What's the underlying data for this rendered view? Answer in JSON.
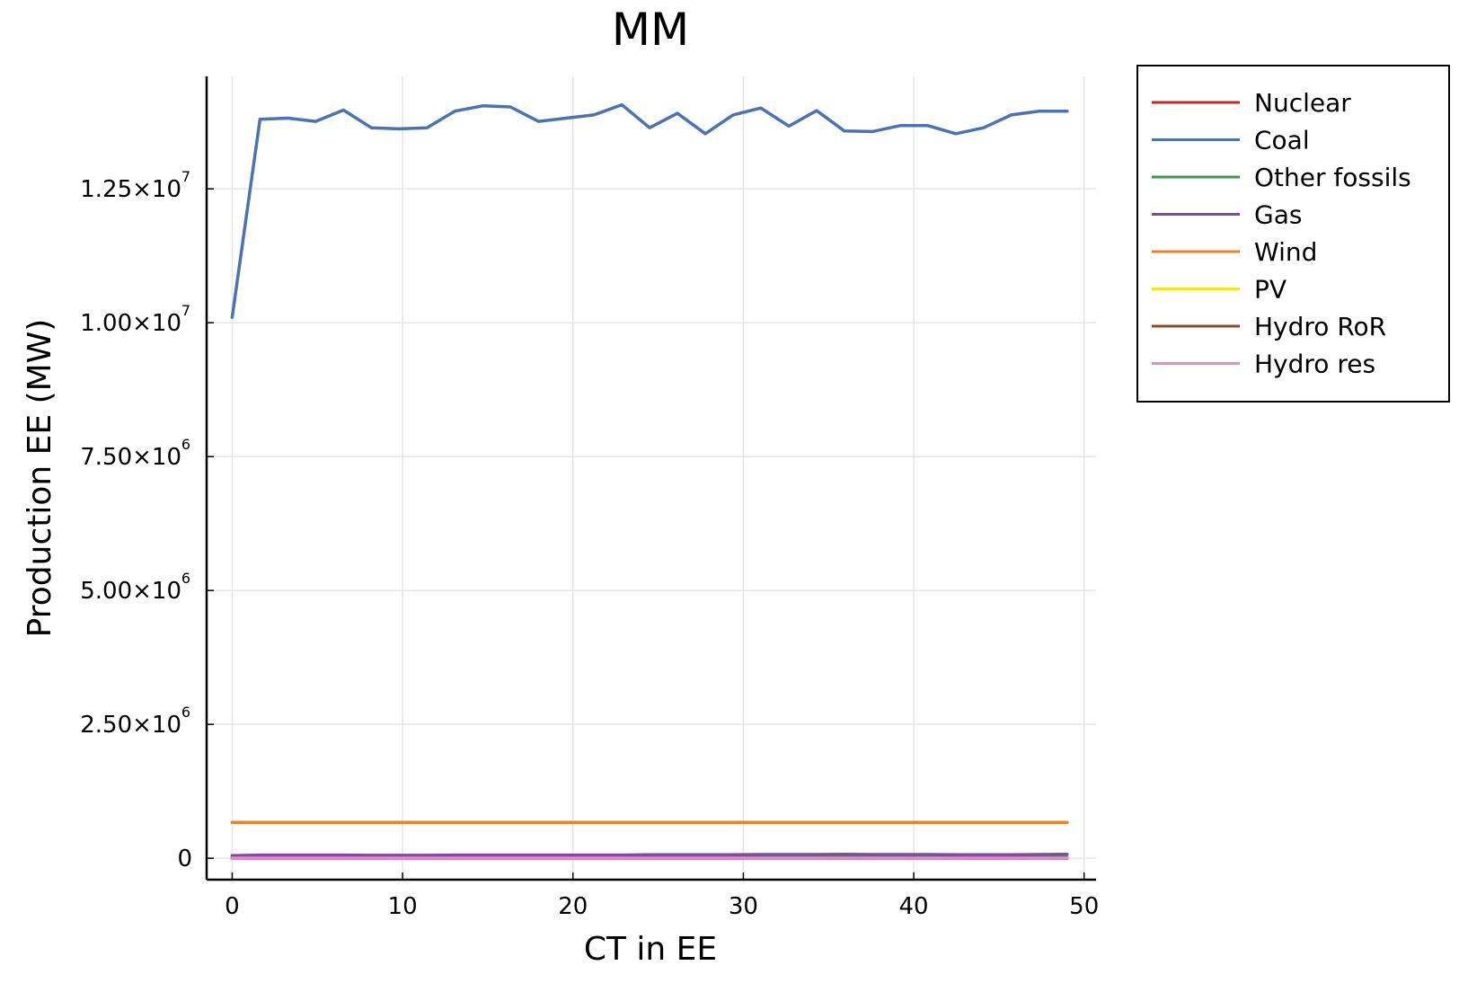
{
  "chart_data": {
    "type": "line",
    "title": "MM",
    "xlabel": "CT in EE",
    "ylabel": "Production EE (MW)",
    "xlim": [
      -1.5,
      50.7
    ],
    "ylim": [
      -400000,
      14600000
    ],
    "grid": true,
    "legend_position": "outside top-right",
    "x_ticks": [
      0,
      10,
      20,
      30,
      40,
      50
    ],
    "x_tick_labels": [
      "0",
      "10",
      "20",
      "30",
      "40",
      "50"
    ],
    "y_ticks": [
      {
        "value": 0,
        "mantissa": "0",
        "exponent": ""
      },
      {
        "value": 2500000,
        "mantissa": "2.50×10",
        "exponent": "6"
      },
      {
        "value": 5000000,
        "mantissa": "5.00×10",
        "exponent": "6"
      },
      {
        "value": 7500000,
        "mantissa": "7.50×10",
        "exponent": "6"
      },
      {
        "value": 10000000,
        "mantissa": "1.00×10",
        "exponent": "7"
      },
      {
        "value": 12500000,
        "mantissa": "1.25×10",
        "exponent": "7"
      }
    ],
    "x": [
      0,
      1.63,
      3.27,
      4.9,
      6.53,
      8.17,
      9.8,
      11.43,
      13.07,
      14.7,
      16.33,
      17.97,
      19.6,
      21.23,
      22.87,
      24.5,
      26.13,
      27.77,
      29.4,
      31.03,
      32.67,
      34.3,
      35.93,
      37.57,
      39.2,
      40.83,
      42.47,
      44.1,
      45.73,
      47.37,
      49
    ],
    "series": [
      {
        "name": "Nuclear",
        "color": "#c0282a",
        "values": [
          0,
          0,
          0,
          0,
          0,
          0,
          0,
          0,
          0,
          0,
          0,
          0,
          0,
          0,
          0,
          0,
          0,
          0,
          0,
          0,
          0,
          0,
          0,
          0,
          0,
          0,
          0,
          0,
          0,
          0,
          0
        ]
      },
      {
        "name": "Coal",
        "color": "#4a72b5",
        "values": [
          10100000,
          13800000,
          13820000,
          13760000,
          13970000,
          13640000,
          13620000,
          13640000,
          13950000,
          14050000,
          14030000,
          13760000,
          13820000,
          13880000,
          14070000,
          13640000,
          13910000,
          13530000,
          13880000,
          14010000,
          13670000,
          13960000,
          13580000,
          13570000,
          13680000,
          13680000,
          13530000,
          13640000,
          13880000,
          13950000,
          13950000
        ]
      },
      {
        "name": "Other fossils",
        "color": "#3a9a44",
        "values": [
          15000,
          15000,
          15000,
          15000,
          15000,
          15000,
          15000,
          15000,
          15000,
          15000,
          15000,
          15000,
          15000,
          15000,
          15000,
          15000,
          15000,
          15000,
          15000,
          15000,
          15000,
          15000,
          15000,
          15000,
          15000,
          15000,
          15000,
          15000,
          15000,
          15000,
          15000
        ]
      },
      {
        "name": "Gas",
        "color": "#7f4aa6",
        "values": [
          50000,
          60000,
          60000,
          60000,
          60000,
          55000,
          55000,
          55000,
          60000,
          60000,
          60000,
          60000,
          60000,
          60000,
          60000,
          65000,
          65000,
          65000,
          65000,
          70000,
          70000,
          70000,
          75000,
          70000,
          70000,
          70000,
          65000,
          65000,
          65000,
          70000,
          75000
        ]
      },
      {
        "name": "Wind",
        "color": "#f07f25",
        "values": [
          670000,
          670000,
          670000,
          670000,
          670000,
          670000,
          670000,
          670000,
          670000,
          670000,
          670000,
          670000,
          670000,
          670000,
          670000,
          670000,
          670000,
          670000,
          670000,
          670000,
          670000,
          670000,
          670000,
          670000,
          670000,
          670000,
          670000,
          670000,
          670000,
          670000,
          670000
        ]
      },
      {
        "name": "PV",
        "color": "#f5e61c",
        "values": [
          5000,
          5000,
          5000,
          5000,
          5000,
          5000,
          5000,
          5000,
          5000,
          5000,
          5000,
          5000,
          5000,
          5000,
          5000,
          5000,
          5000,
          5000,
          5000,
          5000,
          5000,
          5000,
          5000,
          5000,
          5000,
          5000,
          5000,
          5000,
          5000,
          5000,
          5000
        ]
      },
      {
        "name": "Hydro RoR",
        "color": "#8b4a2b",
        "values": [
          8000,
          8000,
          8000,
          8000,
          8000,
          8000,
          8000,
          8000,
          8000,
          8000,
          8000,
          8000,
          8000,
          8000,
          8000,
          8000,
          8000,
          8000,
          8000,
          8000,
          8000,
          8000,
          8000,
          8000,
          8000,
          8000,
          8000,
          8000,
          8000,
          8000,
          8000
        ]
      },
      {
        "name": "Hydro res",
        "color": "#e58cc8",
        "values": [
          3000,
          3000,
          3000,
          3000,
          3000,
          3000,
          3000,
          3000,
          3000,
          3000,
          3000,
          3000,
          3000,
          3000,
          3000,
          3000,
          3000,
          3000,
          3000,
          3000,
          3000,
          3000,
          3000,
          3000,
          3000,
          3000,
          3000,
          3000,
          3000,
          3000,
          3000
        ]
      }
    ]
  }
}
